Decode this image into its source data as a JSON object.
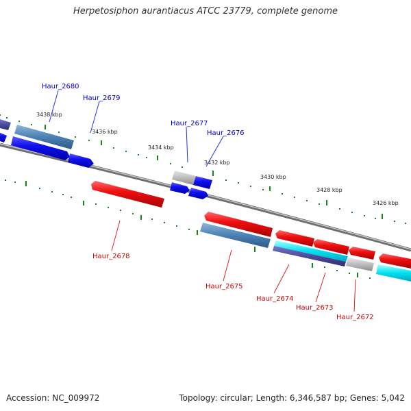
{
  "title": "Herpetosiphon aurantiacus ATCC 23779, complete genome",
  "accession": "Accession: NC_009972",
  "summary": "Topology: circular; Length: 6,346,587 bp; Genes: 5,042",
  "kbp_labels": [
    "3438 kbp",
    "3436 kbp",
    "3434 kbp",
    "3432 kbp",
    "3430 kbp",
    "3428 kbp",
    "3426 kbp"
  ],
  "genes_forward": [
    "Haur_2680",
    "Haur_2679",
    "Haur_2677",
    "Haur_2676"
  ],
  "genes_reverse": [
    "Haur_2678",
    "Haur_2675",
    "Haur_2674",
    "Haur_2673",
    "Haur_2672"
  ],
  "colors": {
    "forward_label": "#0000cc",
    "reverse_label": "#cc0000",
    "forward_gene": "#0000ee",
    "reverse_gene": "#ee0000",
    "tick": "#118811",
    "backbone": "#888888"
  }
}
